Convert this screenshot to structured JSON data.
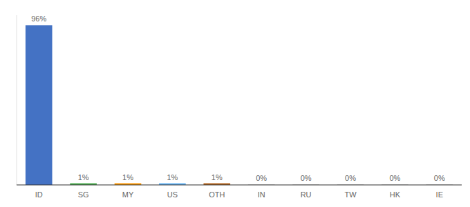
{
  "chart_data": {
    "type": "bar",
    "categories": [
      "ID",
      "SG",
      "MY",
      "US",
      "OTH",
      "IN",
      "RU",
      "TW",
      "HK",
      "IE"
    ],
    "values": [
      96,
      1,
      1,
      1,
      1,
      0.3,
      0.3,
      0.3,
      0.3,
      0.3
    ],
    "value_labels": [
      "96%",
      "1%",
      "1%",
      "1%",
      "1%",
      "0%",
      "0%",
      "0%",
      "0%",
      "0%"
    ],
    "colors": [
      "#4472c4",
      "#4caf50",
      "#ff9800",
      "#64b5f6",
      "#b5651d",
      "#cccccc",
      "#cccccc",
      "#cccccc",
      "#cccccc",
      "#cccccc"
    ],
    "ylim": [
      0,
      102
    ],
    "data_labels": true,
    "tick_labels": "x"
  }
}
